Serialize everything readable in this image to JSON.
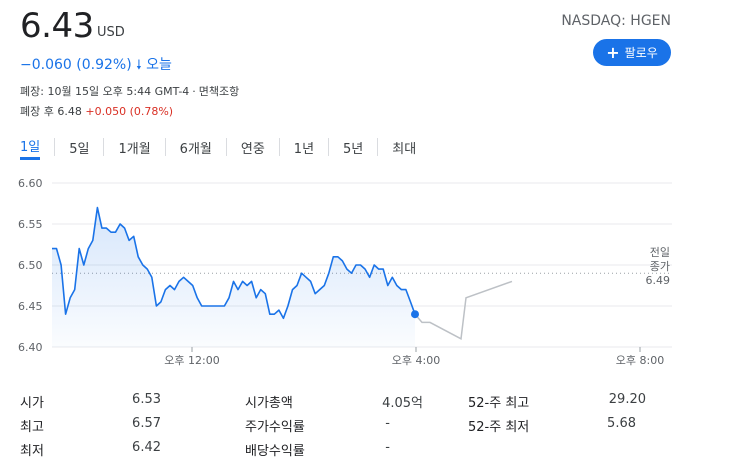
{
  "header": {
    "price": "6.43",
    "currency": "USD",
    "ticker": "NASDAQ: HGEN",
    "change": "−0.060 (0.92%)",
    "change_arrow": "down-arrow-icon",
    "change_period": "오늘",
    "follow_label": "팔로우",
    "closed_text": "폐장: 10월 15일 오후 5:44 GMT-4",
    "disclaimer": "면책조항",
    "after_label": "폐장 후 6.48",
    "after_change": "+0.050 (0.78%)"
  },
  "tabs": [
    {
      "label": "1일",
      "active": true
    },
    {
      "label": "5일"
    },
    {
      "label": "1개월"
    },
    {
      "label": "6개월"
    },
    {
      "label": "연중"
    },
    {
      "label": "1년"
    },
    {
      "label": "5년"
    },
    {
      "label": "최대"
    }
  ],
  "chart_data": {
    "type": "line",
    "y_ticks": [
      "6.60",
      "6.55",
      "6.50",
      "6.45",
      "6.40"
    ],
    "ylim": [
      6.4,
      6.6
    ],
    "x_ticks": [
      "오후 12:00",
      "오후 4:00",
      "오후 8:00"
    ],
    "previous_close_label": [
      "전일",
      "종가",
      "6.49"
    ],
    "previous_close": 6.49,
    "series": [
      {
        "values": [
          6.52,
          6.52,
          6.5,
          6.44,
          6.46,
          6.47,
          6.52,
          6.5,
          6.52,
          6.53,
          6.57,
          6.545,
          6.545,
          6.54,
          6.54,
          6.55,
          6.545,
          6.53,
          6.535,
          6.51,
          6.5,
          6.495,
          6.485,
          6.45,
          6.455,
          6.47,
          6.475,
          6.47,
          6.48,
          6.485,
          6.48,
          6.475,
          6.46,
          6.45,
          6.45,
          6.45,
          6.45,
          6.45,
          6.45,
          6.46,
          6.48,
          6.47,
          6.48,
          6.475,
          6.48,
          6.46,
          6.47,
          6.465,
          6.44,
          6.44,
          6.445,
          6.435,
          6.45,
          6.47,
          6.475,
          6.49,
          6.485,
          6.48,
          6.465,
          6.47,
          6.475,
          6.49,
          6.51,
          6.51,
          6.505,
          6.495,
          6.49,
          6.5,
          6.5,
          6.495,
          6.485,
          6.5,
          6.495,
          6.495,
          6.475,
          6.485,
          6.475,
          6.47,
          6.47,
          6.455,
          6.44
        ]
      },
      {
        "name": "after-hours",
        "values": [
          6.44,
          6.43,
          6.43,
          6.41,
          6.46,
          6.48
        ]
      }
    ]
  },
  "stats": [
    {
      "label": "시가",
      "value": "6.53"
    },
    {
      "label": "시가총액",
      "value": "4.05억"
    },
    {
      "label": "52-주 최고",
      "value": "29.20"
    },
    {
      "label": "최고",
      "value": "6.57"
    },
    {
      "label": "주가수익률",
      "value": "-"
    },
    {
      "label": "52-주 최저",
      "value": "5.68"
    },
    {
      "label": "최저",
      "value": "6.42"
    },
    {
      "label": "배당수익률",
      "value": "-"
    }
  ]
}
